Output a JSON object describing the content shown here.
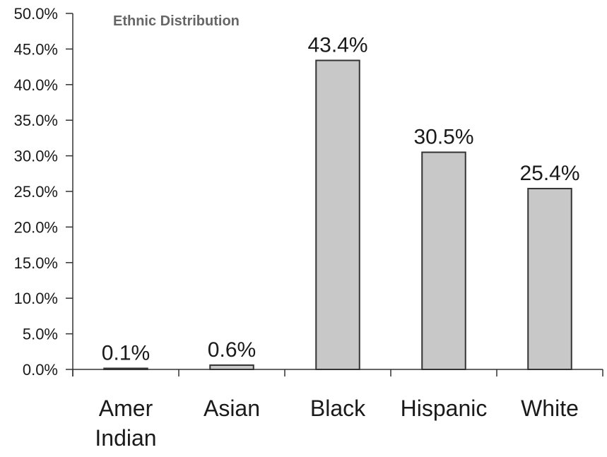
{
  "chart_data": {
    "type": "bar",
    "title": "Ethnic Distribution",
    "categories": [
      [
        "Amer",
        "Indian"
      ],
      [
        "Asian"
      ],
      [
        "Black"
      ],
      [
        "Hispanic"
      ],
      [
        "White"
      ]
    ],
    "values": [
      0.1,
      0.6,
      43.4,
      30.5,
      25.4
    ],
    "data_labels": [
      "0.1%",
      "0.6%",
      "43.4%",
      "30.5%",
      "25.4%"
    ],
    "y_ticks": [
      0,
      5,
      10,
      15,
      20,
      25,
      30,
      35,
      40,
      45,
      50
    ],
    "y_tick_labels": [
      "0.0%",
      "5.0%",
      "10.0%",
      "15.0%",
      "20.0%",
      "25.0%",
      "30.0%",
      "35.0%",
      "40.0%",
      "45.0%",
      "50.0%"
    ],
    "ylim": [
      0,
      50
    ],
    "xlabel": "",
    "ylabel": "",
    "grid": false,
    "legend": "none",
    "colors": {
      "bar_fill": "#c8c8c8",
      "bar_stroke": "#333333"
    }
  }
}
